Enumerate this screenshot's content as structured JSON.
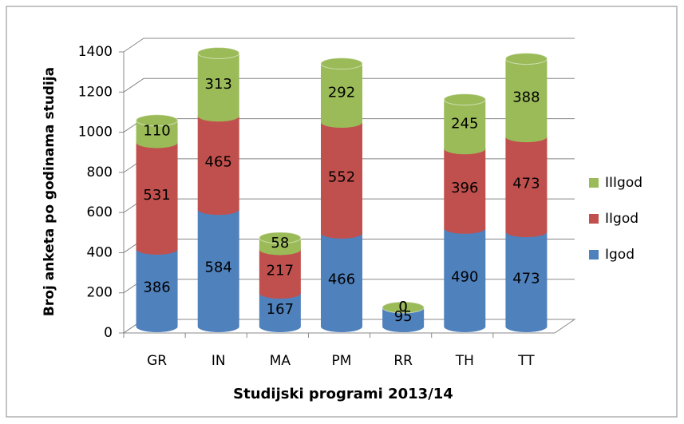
{
  "chart_data": {
    "type": "bar3d-stacked",
    "y_label": "Broj anketa po godinama studija",
    "x_label": "Studijski programi 2013/14",
    "categories": [
      "GR",
      "IN",
      "MA",
      "PM",
      "RR",
      "TH",
      "TT"
    ],
    "series": [
      {
        "name": "Igod",
        "color": "#4f81bd",
        "values": [
          386,
          584,
          167,
          466,
          95,
          490,
          473
        ]
      },
      {
        "name": "IIgod",
        "color": "#c0504d",
        "values": [
          531,
          465,
          217,
          552,
          0,
          396,
          473
        ]
      },
      {
        "name": "IIIgod",
        "color": "#9bbb59",
        "values": [
          110,
          313,
          58,
          292,
          0,
          245,
          388
        ]
      }
    ],
    "ylim": [
      0,
      1400
    ],
    "yticks": [
      0,
      200,
      400,
      600,
      800,
      1000,
      1200,
      1400
    ],
    "grid": true,
    "legend": "right"
  }
}
